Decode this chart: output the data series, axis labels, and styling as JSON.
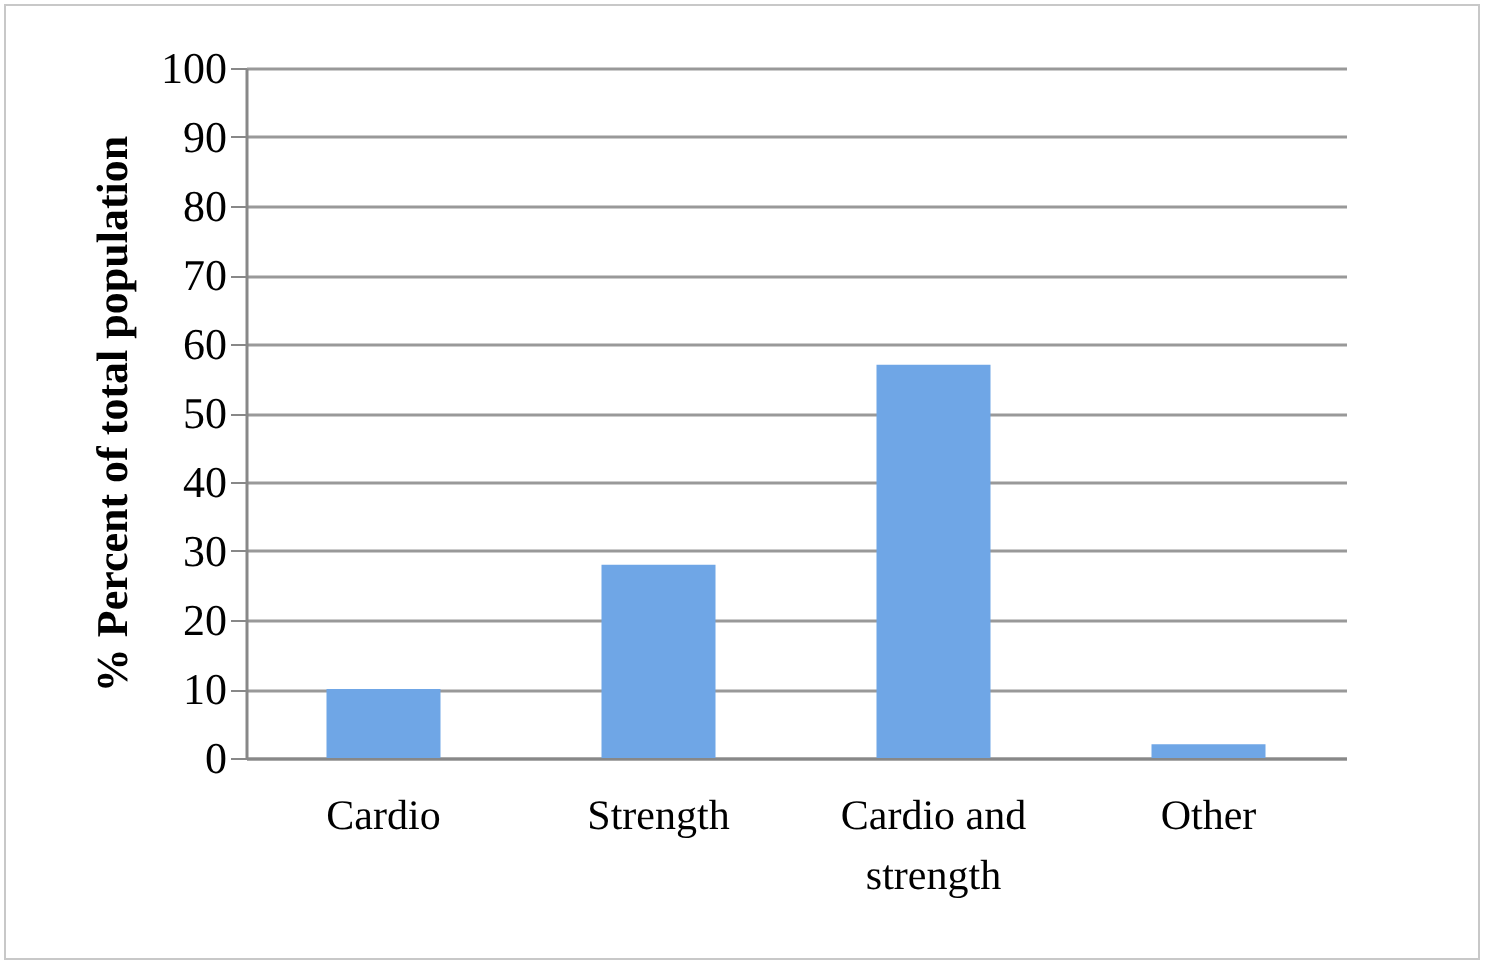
{
  "chart_data": {
    "type": "bar",
    "ylabel": "% Percent of total population",
    "categories": [
      "Cardio",
      "Strength",
      "Cardio and strength",
      "Other"
    ],
    "values": [
      10,
      28,
      57,
      2
    ],
    "color": "#6fa6e6",
    "ylim": [
      0,
      100
    ],
    "yticks": [
      0,
      10,
      20,
      30,
      40,
      50,
      60,
      70,
      80,
      90,
      100
    ],
    "grid": "y"
  }
}
